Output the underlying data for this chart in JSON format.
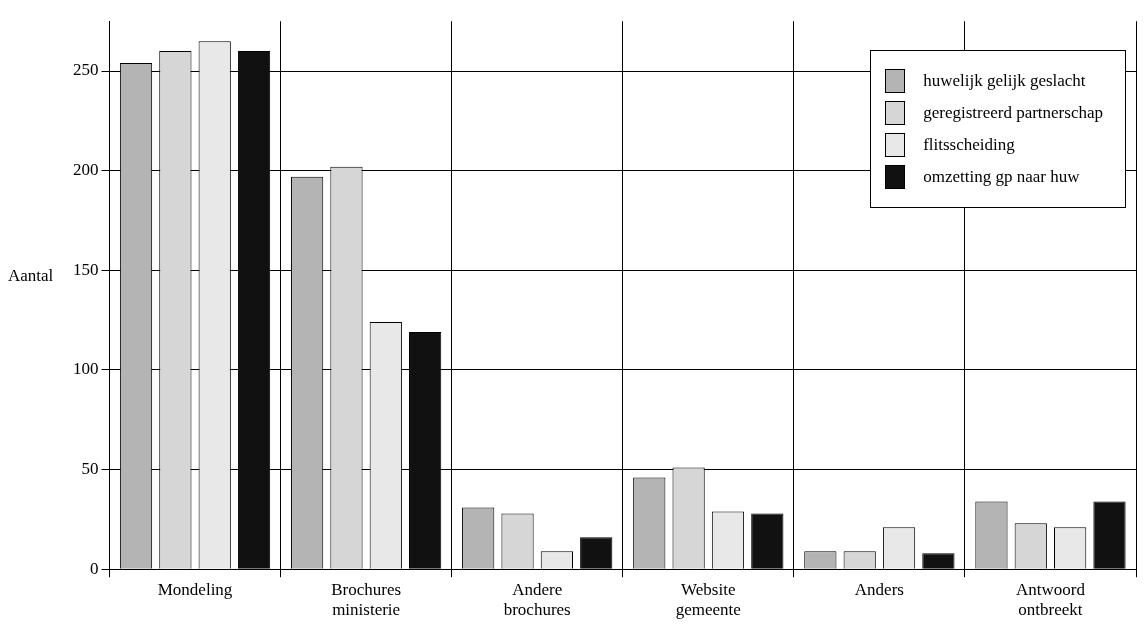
{
  "chart_data": {
    "type": "bar",
    "ylabel": "Aantal",
    "categories": [
      "Mondeling",
      "Brochures ministerie",
      "Andere brochures",
      "Website gemeente",
      "Anders",
      "Antwoord ontbreekt"
    ],
    "series": [
      {
        "name": "huwelijk gelijk geslacht",
        "color": "#b4b4b4",
        "values": [
          254,
          197,
          31,
          46,
          9,
          34
        ]
      },
      {
        "name": "geregistreerd partnerschap",
        "color": "#d6d6d6",
        "values": [
          260,
          202,
          28,
          51,
          9,
          23
        ]
      },
      {
        "name": "flitsscheiding",
        "color": "#e8e8e8",
        "values": [
          265,
          124,
          9,
          29,
          21,
          21
        ]
      },
      {
        "name": "omzetting gp naar huw",
        "color": "#111111",
        "values": [
          260,
          119,
          16,
          28,
          8,
          34
        ]
      }
    ],
    "ylim": [
      0,
      275
    ],
    "yticks": [
      0,
      50,
      100,
      150,
      200,
      250
    ],
    "grid": true,
    "legend": "top right"
  }
}
